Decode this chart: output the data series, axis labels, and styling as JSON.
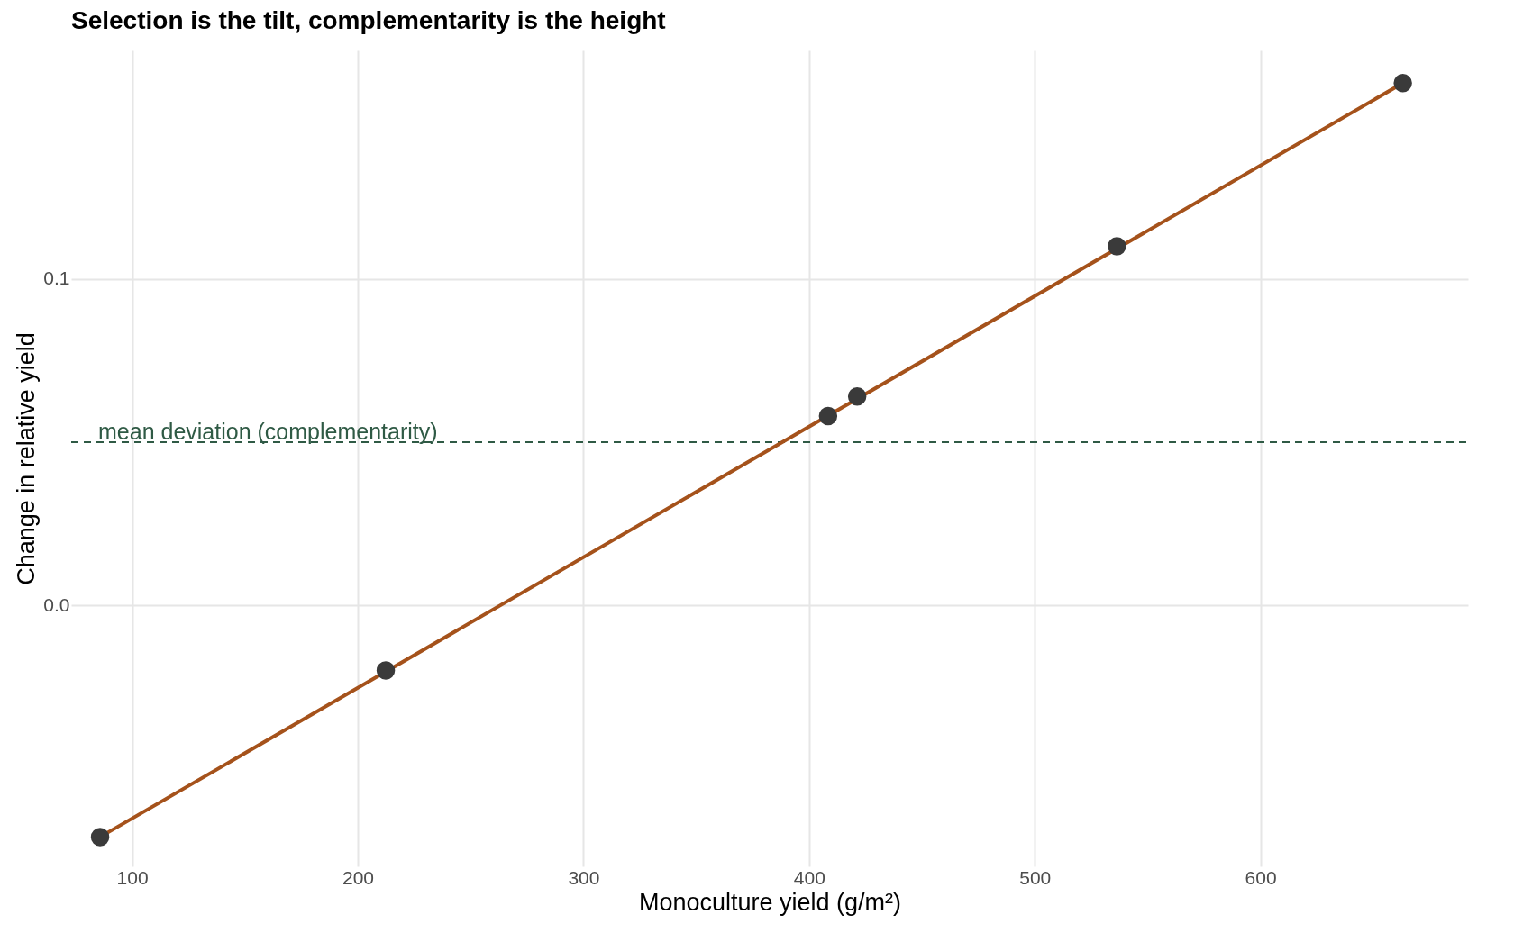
{
  "chart_data": {
    "type": "scatter",
    "title": "Selection is the tilt, complementarity is the height",
    "xlabel": "Monoculture yield (g/m²)",
    "ylabel": "Change in relative yield",
    "xlim": [
      73,
      692
    ],
    "ylim": [
      -0.08,
      0.17
    ],
    "xticks": [
      100,
      200,
      300,
      400,
      500,
      600
    ],
    "yticks": [
      {
        "value": 0,
        "label": "0.0"
      },
      0.1
    ],
    "grid": true,
    "series": [
      {
        "type": "line",
        "marker": "none",
        "color": "#a5521b",
        "x": [
          85.8,
          663.1
        ],
        "values": [
          -0.071,
          0.16
        ]
      },
      {
        "marker": "circle",
        "color": "#3a3a3a",
        "x": [
          85.8,
          212.4,
          408.4,
          421.3,
          536.4,
          663.1
        ],
        "values": [
          -0.071,
          -0.02,
          0.058,
          0.064,
          0.11,
          0.16
        ]
      }
    ],
    "ref_lines": [
      {
        "axis": "y",
        "value": 0.05,
        "label": "mean deviation (complementarity)",
        "color": "#2f5a45",
        "line_style": "dashed"
      }
    ]
  }
}
